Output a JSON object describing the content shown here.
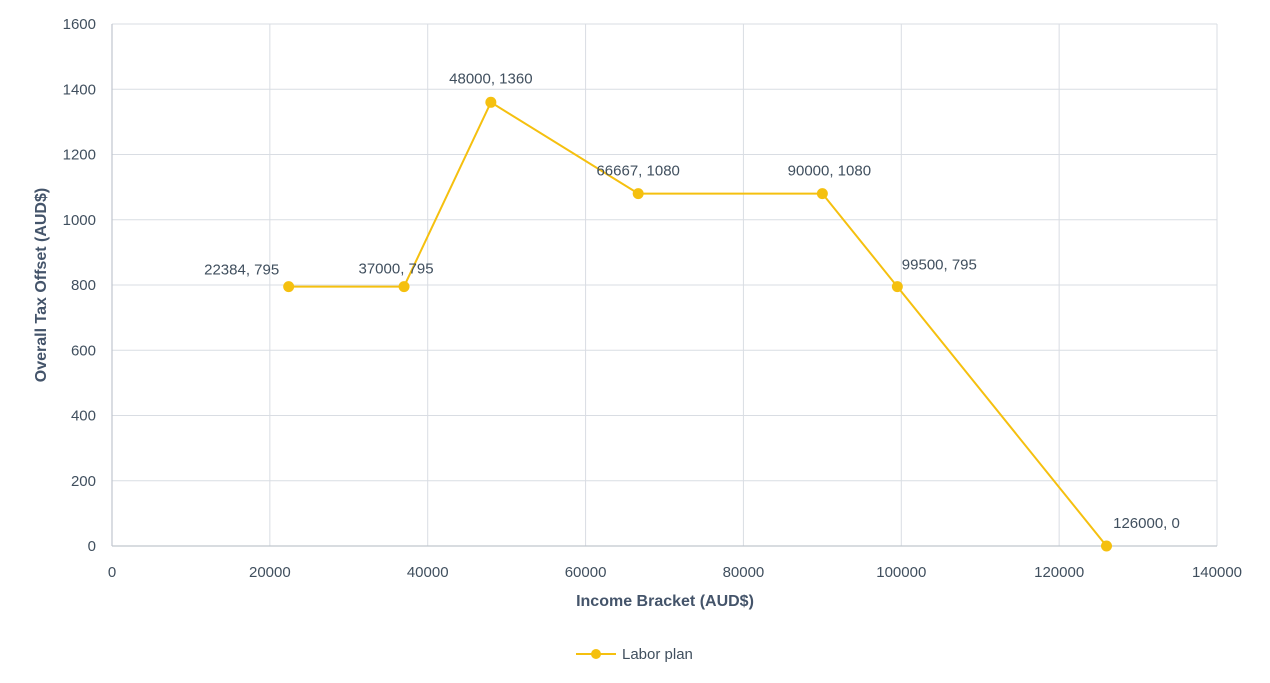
{
  "chart_data": {
    "type": "line",
    "xlabel": "Income Bracket (AUD$)",
    "ylabel": "Overall Tax Offset (AUD$)",
    "xlim": [
      0,
      140000
    ],
    "ylim": [
      0,
      1600
    ],
    "x_ticks": [
      0,
      20000,
      40000,
      60000,
      80000,
      100000,
      120000,
      140000
    ],
    "y_ticks": [
      0,
      200,
      400,
      600,
      800,
      1000,
      1200,
      1400,
      1600
    ],
    "grid": true,
    "legend_position": "bottom",
    "series": [
      {
        "name": "Labor plan",
        "color": "#f5c00f",
        "x": [
          22384,
          37000,
          48000,
          66667,
          90000,
          99500,
          126000
        ],
        "y": [
          795,
          795,
          1360,
          1080,
          1080,
          795,
          0
        ],
        "labels": [
          "22384, 795",
          "37000, 795",
          "48000, 1360",
          "66667, 1080",
          "90000, 1080",
          "99500, 795",
          "126000, 0"
        ]
      }
    ]
  },
  "colors": {
    "grid": "#d9dde3",
    "axis": "#c0c6ce",
    "text": "#404f5e"
  }
}
